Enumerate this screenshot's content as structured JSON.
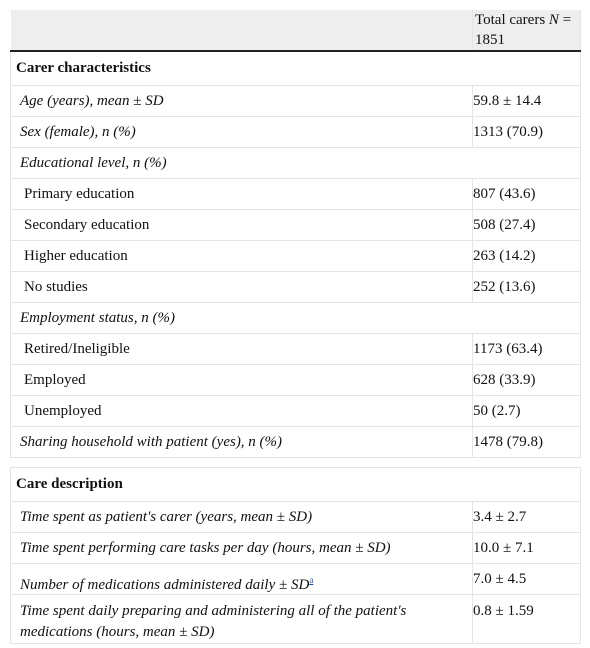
{
  "header": {
    "col2_prefix": "Total carers ",
    "col2_n": "N",
    "col2_eq": " =",
    "col2_value": "1851"
  },
  "sections": {
    "carer": {
      "title": "Carer characteristics",
      "rows": {
        "age": {
          "label": "Age (years), mean ± SD",
          "value": "59.8 ± 14.4"
        },
        "sex": {
          "label": "Sex (female), n (%)",
          "value": "1313 (70.9)"
        },
        "edu": {
          "label": "Educational level, n (%)"
        },
        "primary": {
          "label": "Primary education",
          "value": "807 (43.6)"
        },
        "secondary": {
          "label": "Secondary education",
          "value": "508 (27.4)"
        },
        "higher": {
          "label": "Higher education",
          "value": "263 (14.2)"
        },
        "nostudies": {
          "label": "No studies",
          "value": "252 (13.6)"
        },
        "employment": {
          "label": "Employment status, n (%)"
        },
        "retired": {
          "label": "Retired/Ineligible",
          "value": "1173 (63.4)"
        },
        "employed": {
          "label": "Employed",
          "value": "628 (33.9)"
        },
        "unemployed": {
          "label": "Unemployed",
          "value": "50 (2.7)"
        },
        "household": {
          "label": "Sharing household with patient (yes), n (%)",
          "value": "1478 (79.8)"
        }
      }
    },
    "care": {
      "title": "Care description",
      "rows": {
        "years": {
          "label": "Time spent as patient's carer (years, mean ± SD)",
          "value": "3.4 ± 2.7"
        },
        "hours": {
          "label": "Time spent performing care tasks per day (hours, mean ± SD)",
          "value": "10.0 ± 7.1"
        },
        "meds": {
          "label": "Number of medications administered daily ± SD",
          "footnote": "a",
          "value": "7.0 ± 4.5"
        },
        "prep": {
          "label": "Time spent daily preparing and administering all of the patient's medications (hours, mean ± SD)",
          "value": "0.8 ± 1.59"
        }
      }
    }
  },
  "colors": {
    "header_bg": "#eeeeee",
    "border": "#e4e4e4",
    "rule": "#222222",
    "link": "#1a56a0"
  }
}
